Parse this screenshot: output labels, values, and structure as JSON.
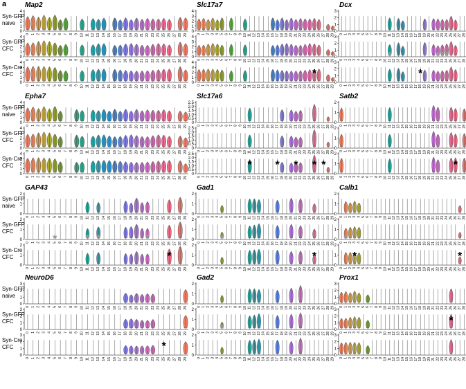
{
  "panel_label": "a",
  "chart_data": {
    "type": "violin",
    "clusters": [
      "0",
      "1",
      "2",
      "3",
      "4",
      "5",
      "6",
      "7",
      "8",
      "9",
      "10",
      "11",
      "12",
      "13",
      "14",
      "15",
      "16",
      "17",
      "18",
      "19",
      "20",
      "21",
      "22",
      "23",
      "24",
      "25",
      "26",
      "27",
      "28",
      "29"
    ],
    "conditions": [
      {
        "line1": "Syn-GFP",
        "line2": "naive"
      },
      {
        "line1": "Syn-GFP",
        "line2": "CFC"
      },
      {
        "line1": "Syn-Cre",
        "line2": "CFC"
      }
    ],
    "genes": [
      {
        "name": "Map2",
        "ylim": [
          0,
          4
        ],
        "yticks": [
          "0",
          "1",
          "2",
          "3",
          "4"
        ],
        "profile": [
          3,
          3,
          3,
          3,
          3,
          3,
          2.5,
          2.5,
          0,
          0,
          2.5,
          0,
          2.5,
          2.5,
          2.5,
          0,
          2.5,
          2.5,
          2.5,
          2.5,
          2.5,
          2.5,
          2.5,
          2.5,
          2.5,
          2.5,
          2.5,
          0,
          3,
          2.5
        ],
        "stars": [
          [],
          [],
          []
        ]
      },
      {
        "name": "Slc17a7",
        "ylim": [
          0,
          4
        ],
        "yticks": [
          "0",
          "1",
          "2",
          "3",
          "4"
        ],
        "profile": [
          2.5,
          2.5,
          2.5,
          2.5,
          2.5,
          2.5,
          0.2,
          2.5,
          0,
          0,
          2.5,
          0,
          0.2,
          0,
          0,
          0,
          2.5,
          2.5,
          2.5,
          2.5,
          2.5,
          2.5,
          2.5,
          2.5,
          2.5,
          2.5,
          2.5,
          0,
          1.5,
          1
        ],
        "stars": [
          [],
          [],
          [
            {
              "cluster": 25,
              "color": "black"
            }
          ]
        ]
      },
      {
        "name": "Dcx",
        "ylim": [
          0,
          3
        ],
        "yticks": [
          "0",
          "1",
          "2",
          "3"
        ],
        "profile": [
          0.2,
          0.2,
          0.2,
          0.2,
          0.2,
          0.2,
          0.2,
          0.2,
          0.2,
          0.2,
          0.2,
          2,
          0.2,
          2,
          1.5,
          0.2,
          0.2,
          0.2,
          0.2,
          2,
          0.2,
          2,
          1.8,
          1.8,
          1.8,
          2.2,
          1.8,
          0.2,
          0.2,
          0.8
        ],
        "stars": [
          [],
          [
            {
              "cluster": 11,
              "color": "gray"
            },
            {
              "cluster": 22,
              "color": "gray"
            },
            {
              "cluster": 23,
              "color": "gray"
            },
            {
              "cluster": 24,
              "color": "gray"
            },
            {
              "cluster": 29,
              "color": "gray"
            }
          ],
          [
            {
              "cluster": 18,
              "color": "black"
            }
          ]
        ]
      },
      {
        "name": "Epha7",
        "ylim": [
          0,
          4
        ],
        "yticks": [
          "0",
          "1",
          "2",
          "3",
          "4"
        ],
        "profile": [
          3,
          3,
          3,
          3,
          3,
          3,
          2.5,
          0.2,
          0,
          2.5,
          2.5,
          0,
          2.5,
          2.5,
          2.5,
          2.5,
          2.5,
          2.5,
          2.5,
          2.5,
          2.5,
          2.5,
          2.5,
          2.5,
          2.5,
          2.5,
          2.5,
          0,
          2.5,
          2
        ],
        "stars": [
          [],
          [],
          []
        ]
      },
      {
        "name": "Slc17a6",
        "ylim": [
          0,
          2.5
        ],
        "yticks": [
          "0",
          "0.5",
          "1.0",
          "1.5",
          "2.0",
          "2.5"
        ],
        "profile": [
          0,
          0,
          0,
          0,
          0,
          0,
          0,
          0,
          0,
          0,
          0,
          1.8,
          0,
          0,
          0,
          0,
          0,
          0,
          1.5,
          0,
          1.5,
          1.5,
          1.5,
          0,
          0,
          2.2,
          0,
          0,
          0.8,
          0
        ],
        "stars": [
          [],
          [],
          [
            {
              "cluster": 11,
              "color": "black"
            },
            {
              "cluster": 17,
              "color": "black"
            },
            {
              "cluster": 21,
              "color": "black"
            },
            {
              "cluster": 25,
              "color": "black"
            },
            {
              "cluster": 27,
              "color": "black"
            }
          ]
        ]
      },
      {
        "name": "Satb2",
        "ylim": [
          0,
          2
        ],
        "yticks": [
          "0",
          "1",
          "2"
        ],
        "profile": [
          1.5,
          0,
          0,
          0,
          0,
          0,
          0,
          0,
          0,
          0,
          0,
          1.5,
          0,
          0,
          0,
          0,
          0,
          0,
          0,
          0,
          0,
          1.8,
          1.5,
          0,
          0,
          1.5,
          1.5,
          0,
          1.5,
          0
        ],
        "stars": [
          [],
          [],
          [
            {
              "cluster": 26,
              "color": "black"
            }
          ]
        ]
      },
      {
        "name": "GAP43",
        "ylim": [
          0,
          2
        ],
        "yticks": [
          "0",
          "1",
          "2"
        ],
        "profile": [
          0.2,
          0.2,
          0.2,
          0.2,
          0.2,
          0.2,
          0.2,
          0.2,
          0.2,
          0.2,
          0.2,
          1.2,
          0.2,
          1.2,
          0.2,
          0.2,
          0.2,
          0.2,
          1.2,
          1.2,
          1.5,
          1.2,
          1.2,
          0.2,
          0.2,
          0.2,
          1.5,
          0.2,
          1.8,
          0.2
        ],
        "stars": [
          [],
          [
            {
              "cluster": 5,
              "color": "gray"
            },
            {
              "cluster": 11,
              "color": "gray"
            },
            {
              "cluster": 13,
              "color": "gray"
            },
            {
              "cluster": 22,
              "color": "gray"
            }
          ],
          [
            {
              "cluster": 26,
              "color": "black"
            }
          ]
        ]
      },
      {
        "name": "Gad1",
        "ylim": [
          0,
          2
        ],
        "yticks": [
          "0",
          "1",
          "2"
        ],
        "profile": [
          0,
          0,
          0,
          0,
          0,
          0.8,
          0,
          0,
          0,
          0,
          0,
          1.5,
          1.5,
          1.5,
          0,
          0,
          0,
          1.5,
          0,
          0,
          1.5,
          0,
          1.5,
          0,
          0,
          1,
          0,
          0,
          0,
          0
        ],
        "stars": [
          [],
          [
            {
              "cluster": 5,
              "color": "gray"
            }
          ],
          [
            {
              "cluster": 25,
              "color": "black"
            }
          ]
        ]
      },
      {
        "name": "Calb1",
        "ylim": [
          0,
          2
        ],
        "yticks": [
          "0",
          "1",
          "2"
        ],
        "profile": [
          0.2,
          1.2,
          1.2,
          1.2,
          1.2,
          0.2,
          0.2,
          0.2,
          0.2,
          0.2,
          0.2,
          0.2,
          0.2,
          0.2,
          0.2,
          0.2,
          0.2,
          0.2,
          0.2,
          0.2,
          0.2,
          0.2,
          0.2,
          0.2,
          0.2,
          0.2,
          0.2,
          0.8,
          0.2,
          0.2
        ],
        "stars": [
          [],
          [
            {
              "cluster": 1,
              "color": "gray"
            },
            {
              "cluster": 29,
              "color": "gray"
            }
          ],
          [
            {
              "cluster": 3,
              "color": "black"
            },
            {
              "cluster": 27,
              "color": "black"
            }
          ]
        ]
      },
      {
        "name": "NeuroD6",
        "ylim": [
          0,
          3
        ],
        "yticks": [
          "0",
          "1",
          "2",
          "3"
        ],
        "profile": [
          0.2,
          0.2,
          0.2,
          0.2,
          0.2,
          0.2,
          0.2,
          0.2,
          0.2,
          0.2,
          0.2,
          0.2,
          0.2,
          0.2,
          0.2,
          0.2,
          0.2,
          0.2,
          1.5,
          1.5,
          1.5,
          1.5,
          1.5,
          1.5,
          0.2,
          0.2,
          0.2,
          0.2,
          0.2,
          2
        ],
        "stars": [
          [],
          [],
          [
            {
              "cluster": 25,
              "color": "black"
            }
          ]
        ]
      },
      {
        "name": "Gad2",
        "ylim": [
          0,
          2
        ],
        "yticks": [
          "0",
          "1",
          "2"
        ],
        "profile": [
          0,
          0,
          0,
          0,
          0,
          0.8,
          0,
          0,
          0,
          0,
          0,
          1.5,
          1.5,
          1.5,
          0,
          0,
          0,
          1.5,
          0,
          0,
          1.5,
          0,
          1.8,
          0,
          0,
          0,
          0,
          0,
          0,
          0
        ],
        "stars": [
          [],
          [
            {
              "cluster": 5,
              "color": "gray"
            }
          ],
          []
        ]
      },
      {
        "name": "Prox1",
        "ylim": [
          0,
          3
        ],
        "yticks": [
          "0",
          "1",
          "2",
          "3"
        ],
        "profile": [
          1.8,
          1.8,
          1.8,
          1.8,
          1.8,
          0.2,
          1.5,
          0.2,
          0.2,
          0.2,
          0.2,
          0.2,
          0.2,
          0.2,
          0.2,
          0.2,
          0.2,
          0.2,
          0.2,
          0.2,
          0.2,
          0.2,
          0.2,
          0.2,
          0.2,
          2.2,
          0.2,
          0.2,
          0.2,
          0.2
        ],
        "stars": [
          [],
          [
            {
              "cluster": 25,
              "color": "black"
            }
          ],
          []
        ]
      }
    ]
  }
}
